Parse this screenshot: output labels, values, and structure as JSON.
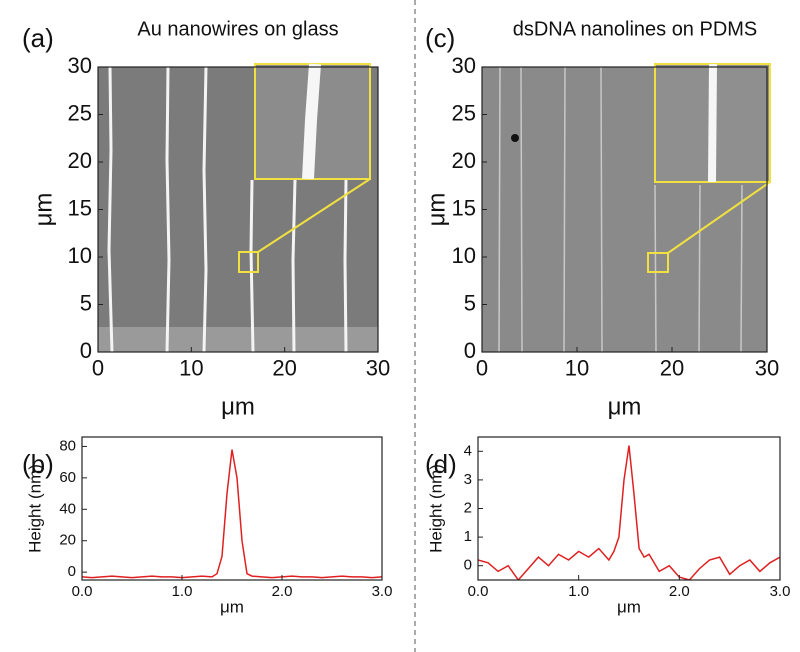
{
  "chart_data": [
    {
      "type": "image",
      "label": "(a)",
      "title": "Au nanowires on glass",
      "xlabel": "μm",
      "ylabel": "μm",
      "xlim": [
        0,
        30
      ],
      "ylim": [
        0,
        30
      ],
      "xticks": [
        0,
        10,
        20,
        30
      ],
      "yticks": [
        0,
        5,
        10,
        15,
        20,
        25,
        30
      ]
    },
    {
      "type": "line",
      "label": "(b)",
      "xlabel": "μm",
      "ylabel": "Height (nm)",
      "x": [
        0,
        0.1,
        0.2,
        0.3,
        0.4,
        0.5,
        0.6,
        0.7,
        0.8,
        0.9,
        1.0,
        1.1,
        1.2,
        1.3,
        1.35,
        1.4,
        1.45,
        1.5,
        1.55,
        1.6,
        1.65,
        1.7,
        1.8,
        1.9,
        2.0,
        2.1,
        2.2,
        2.3,
        2.4,
        2.5,
        2.6,
        2.7,
        2.8,
        2.9,
        3.0
      ],
      "series": [
        {
          "color": "#e02020",
          "values": [
            -3,
            -3.5,
            -3,
            -2.5,
            -3,
            -3.5,
            -3,
            -2.5,
            -3,
            -3,
            -3.5,
            -3,
            -2.5,
            -3,
            -1,
            10,
            50,
            78,
            60,
            20,
            -1,
            -2.5,
            -3,
            -3.5,
            -3,
            -2.5,
            -3,
            -3,
            -3.5,
            -3,
            -2.5,
            -3,
            -3,
            -3.5,
            -3
          ]
        }
      ],
      "xlim": [
        0,
        3
      ],
      "ylim": [
        -5,
        86
      ],
      "xticks": [
        {
          "value": 0,
          "label": "0.0"
        },
        {
          "value": 1,
          "label": "1.0"
        },
        {
          "value": 2,
          "label": "2.0"
        },
        {
          "value": 3,
          "label": "3.0"
        }
      ],
      "yticks": [
        0,
        20,
        40,
        60,
        80
      ]
    },
    {
      "type": "image",
      "label": "(c)",
      "title": "dsDNA nanolines on PDMS",
      "xlabel": "μm",
      "ylabel": "μm",
      "xlim": [
        0,
        30
      ],
      "ylim": [
        0,
        30
      ],
      "xticks": [
        0,
        10,
        20,
        30
      ],
      "yticks": [
        0,
        5,
        10,
        15,
        20,
        25,
        30
      ]
    },
    {
      "type": "line",
      "label": "(d)",
      "xlabel": "μm",
      "ylabel": "Height (nm)",
      "x": [
        0,
        0.1,
        0.2,
        0.3,
        0.4,
        0.5,
        0.6,
        0.7,
        0.8,
        0.9,
        1.0,
        1.1,
        1.2,
        1.3,
        1.35,
        1.4,
        1.45,
        1.5,
        1.55,
        1.6,
        1.65,
        1.7,
        1.8,
        1.9,
        2.0,
        2.1,
        2.2,
        2.3,
        2.4,
        2.5,
        2.6,
        2.7,
        2.8,
        2.9,
        3.0
      ],
      "series": [
        {
          "color": "#e02020",
          "values": [
            0.2,
            0.1,
            -0.2,
            0,
            -0.5,
            -0.1,
            0.3,
            0,
            0.4,
            0.2,
            0.5,
            0.3,
            0.6,
            0.2,
            0.5,
            1.0,
            3.0,
            4.2,
            2.5,
            0.6,
            0.3,
            0.4,
            -0.2,
            0,
            -0.4,
            -0.5,
            -0.1,
            0.2,
            0.3,
            -0.3,
            0,
            0.2,
            -0.2,
            0.1,
            0.3
          ]
        }
      ],
      "xlim": [
        0,
        3
      ],
      "ylim": [
        -0.5,
        4.5
      ],
      "xticks": [
        {
          "value": 0,
          "label": "0.0"
        },
        {
          "value": 1,
          "label": "1.0"
        },
        {
          "value": 2,
          "label": "2.0"
        },
        {
          "value": 3,
          "label": "3.0"
        }
      ],
      "yticks": [
        0,
        1,
        2,
        3,
        4
      ]
    }
  ]
}
